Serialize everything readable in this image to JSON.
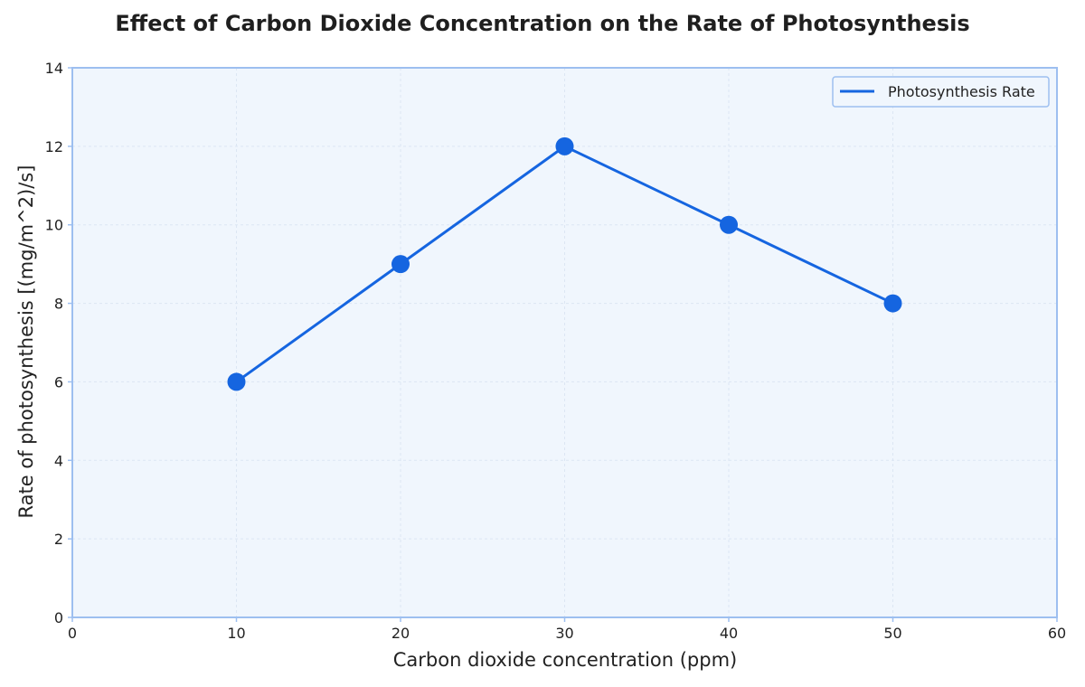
{
  "chart_data": {
    "type": "line",
    "title": "Effect of Carbon Dioxide Concentration on the Rate of Photosynthesis",
    "xlabel": "Carbon dioxide concentration (ppm)",
    "ylabel": "Rate of photosynthesis [(mg/m^2)/s]",
    "xlim": [
      0,
      60
    ],
    "ylim": [
      0,
      14
    ],
    "x_ticks": [
      0,
      10,
      20,
      30,
      40,
      50,
      60
    ],
    "y_ticks": [
      0,
      2,
      4,
      6,
      8,
      10,
      12,
      14
    ],
    "grid": true,
    "legend_position": "top-right",
    "series": [
      {
        "name": "Photosynthesis Rate",
        "x": [
          10,
          20,
          30,
          40,
          50
        ],
        "y": [
          6,
          9,
          12,
          10,
          8
        ],
        "color": "#1565e0",
        "marker": "circle"
      }
    ],
    "colors": {
      "plot_background": "#f0f6fd",
      "axis_frame": "#9dbff0",
      "grid": "#dce6f3"
    }
  }
}
